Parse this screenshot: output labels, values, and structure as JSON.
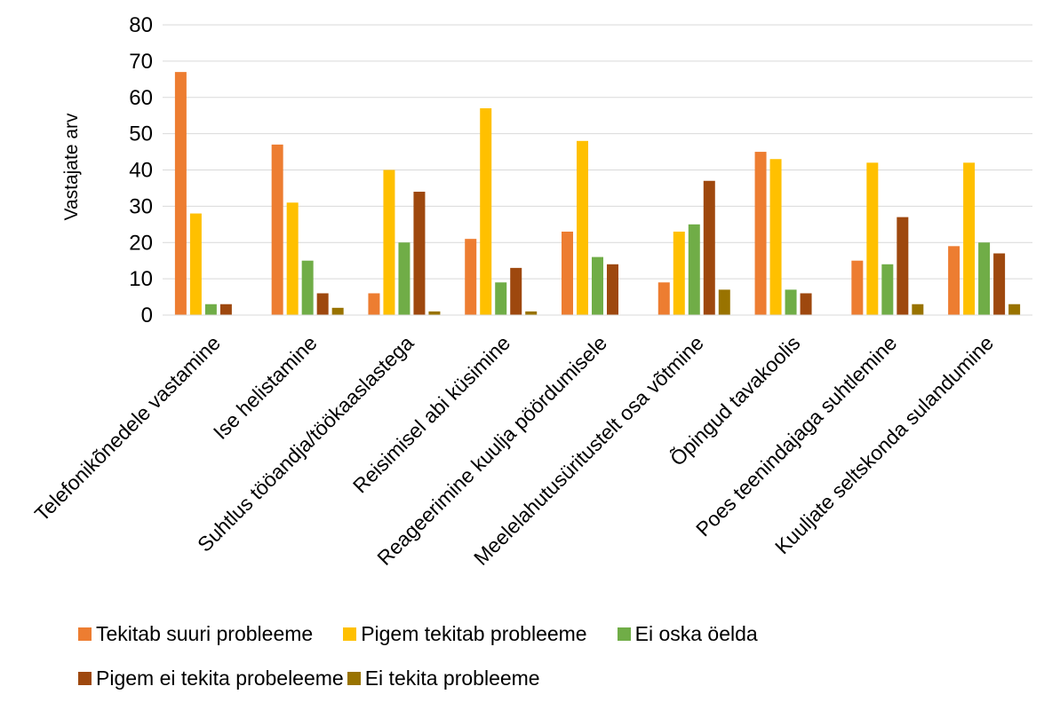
{
  "chart_data": {
    "type": "bar",
    "title": "",
    "xlabel": "",
    "ylabel": "Vastajate arv",
    "ylim": [
      0,
      80
    ],
    "yticks": [
      0,
      10,
      20,
      30,
      40,
      50,
      60,
      70,
      80
    ],
    "grid": true,
    "legend_position": "bottom",
    "categories": [
      "Telefonikõnedele vastamine",
      "Ise helistamine",
      "Suhtlus tööandja/töökaaslastega",
      "Reisimisel abi küsimine",
      "Reageerimine kuulja pöördumisele",
      "Meelelahutusüritustelt osa võtmine",
      "Õpingud tavakoolis",
      "Poes teenindajaga suhtlemine",
      "Kuuljate seltskonda sulandumine"
    ],
    "series": [
      {
        "name": "Tekitab suuri probleeme",
        "color": "#ED7D31",
        "values": [
          67,
          47,
          6,
          21,
          23,
          9,
          45,
          15,
          19
        ]
      },
      {
        "name": "Pigem tekitab probleeme",
        "color": "#FFC000",
        "values": [
          28,
          31,
          40,
          57,
          48,
          23,
          43,
          42,
          42
        ]
      },
      {
        "name": "Ei oska öelda",
        "color": "#70AD47",
        "values": [
          3,
          15,
          20,
          9,
          16,
          25,
          7,
          14,
          20
        ]
      },
      {
        "name": "Pigem ei tekita probeleeme",
        "color": "#9E480E",
        "values": [
          3,
          6,
          34,
          13,
          14,
          37,
          6,
          27,
          17
        ]
      },
      {
        "name": "Ei tekita probleeme",
        "color": "#997300",
        "values": [
          0,
          2,
          1,
          1,
          0,
          7,
          0,
          3,
          3
        ]
      }
    ]
  }
}
